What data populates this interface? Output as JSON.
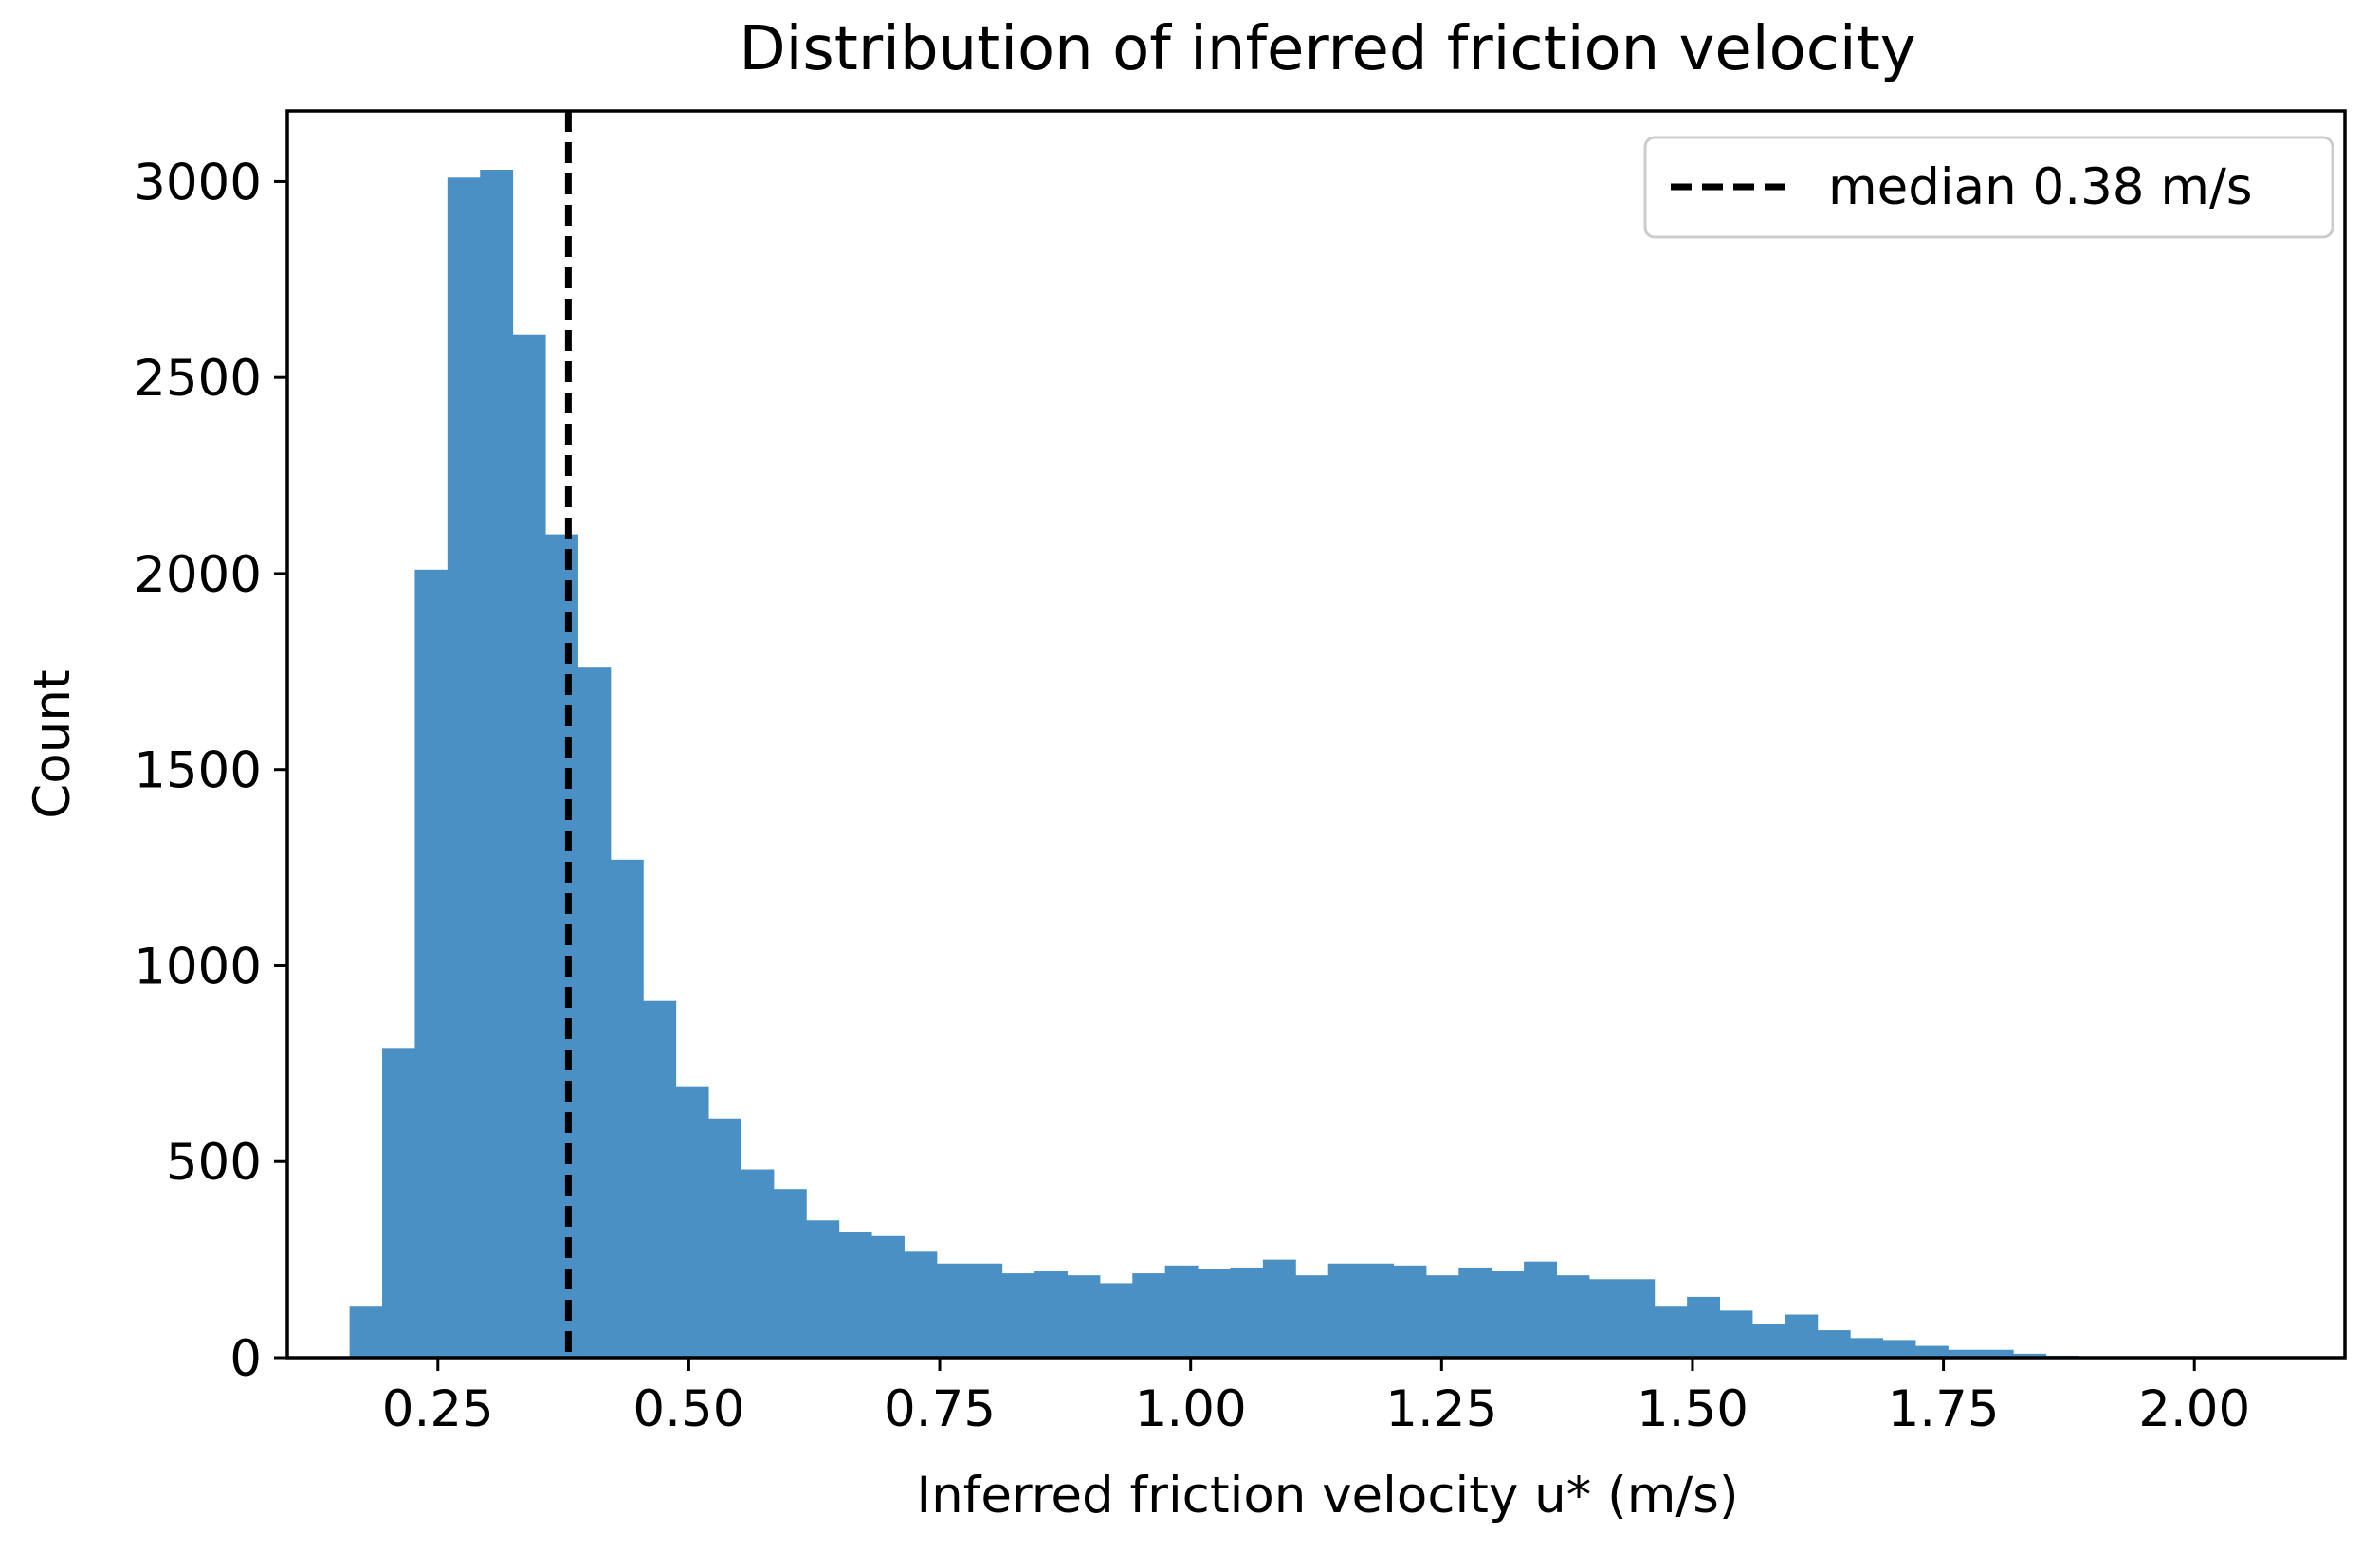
{
  "chart_data": {
    "type": "bar",
    "title": "Distribution of inferred friction velocity",
    "xlabel": "Inferred friction velocity u* (m/s)",
    "ylabel": "Count",
    "xlim": [
      0.1,
      2.15
    ],
    "ylim": [
      0,
      3180
    ],
    "xticks": [
      "0.25",
      "0.50",
      "0.75",
      "1.00",
      "1.25",
      "1.50",
      "1.75",
      "2.00"
    ],
    "yticks": [
      "0",
      "500",
      "1000",
      "1500",
      "2000",
      "2500",
      "3000"
    ],
    "bar_color": "#4a90c4",
    "bin_start": 0.162,
    "bin_width": 0.0325,
    "values": [
      130,
      790,
      2010,
      3010,
      3030,
      2610,
      2100,
      1760,
      1270,
      910,
      690,
      610,
      480,
      430,
      350,
      320,
      310,
      270,
      240,
      240,
      215,
      220,
      210,
      190,
      215,
      235,
      225,
      230,
      250,
      210,
      240,
      240,
      235,
      210,
      230,
      220,
      245,
      210,
      200,
      200,
      130,
      155,
      120,
      85,
      110,
      70,
      50,
      45,
      30,
      20,
      20,
      10,
      5,
      3,
      2,
      1,
      1,
      1,
      1,
      1
    ],
    "median_line": {
      "x": 0.38,
      "label": "median 0.38 m/s",
      "color": "#000000",
      "style": "dashed"
    },
    "legend_position": "top-right",
    "grid": false
  }
}
